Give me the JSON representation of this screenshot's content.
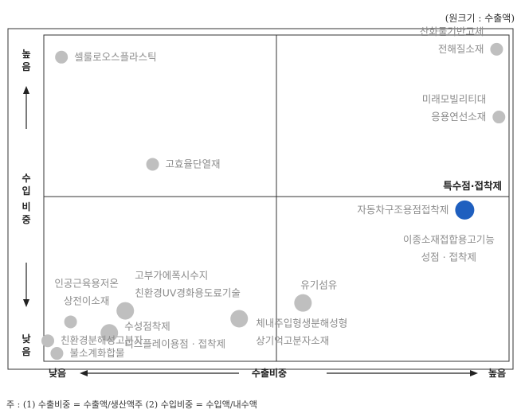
{
  "unit_note": "(원크기 : 수출액)",
  "footnote": "주 : (1) 수출비중 = 수출액/생산액주 (2) 수입비중 = 수입액/내수액",
  "chart_data": {
    "type": "scatter",
    "xlabel": "수출비중",
    "ylabel": [
      "수",
      "입",
      "비",
      "중"
    ],
    "x_low": "낮음",
    "x_high": "높음",
    "y_high": [
      "높",
      "음"
    ],
    "y_low": [
      "낮",
      "음"
    ],
    "points": [
      {
        "name": "셀룰로오스플라스틱",
        "label_lines": [
          "셀룰로오스플라스틱"
        ],
        "x": 0.03,
        "y": 0.95,
        "size": "small",
        "color": "#bfbfbf",
        "label_side": "right"
      },
      {
        "name": "산화물기반고체전해질소재",
        "label_lines": [
          "산화물기반고체",
          "전해질소재"
        ],
        "x": 0.985,
        "y": 0.975,
        "size": "small",
        "color": "#bfbfbf",
        "label_side": "left"
      },
      {
        "name": "미래모빌리티대응용연선소재",
        "label_lines": [
          "미래모빌리티대",
          "응용연선소재"
        ],
        "x": 0.99,
        "y": 0.76,
        "size": "small",
        "color": "#bfbfbf",
        "label_side": "left"
      },
      {
        "name": "고효율단열재",
        "label_lines": [
          "고효율단열재"
        ],
        "x": 0.23,
        "y": 0.61,
        "size": "small",
        "color": "#bfbfbf",
        "label_side": "right"
      },
      {
        "name": "자동차구조용점접착제",
        "label_lines": [
          "자동차구조용점접착제"
        ],
        "x": 0.915,
        "y": 0.465,
        "size": "large",
        "color": "#1f5fbf",
        "label_side": "left"
      },
      {
        "name": "이종소재접합용고기능성점·접착제",
        "label_lines": [
          "이종소재접합용고기능",
          "성점 · 접착제"
        ],
        "x": 0.88,
        "y": 0.36,
        "size": "none",
        "color": "#bfbfbf",
        "label_side": "center"
      },
      {
        "name": "유기섬유",
        "label_lines": [
          "유기섬유"
        ],
        "x": 0.56,
        "y": 0.17,
        "size": "medium",
        "color": "#bfbfbf",
        "label_side": "above"
      },
      {
        "name": "체내주입형생분해성형상기억고분자소재",
        "label_lines": [
          "체내주입형생분해성형",
          "상기억고분자소재"
        ],
        "x": 0.42,
        "y": 0.12,
        "size": "medium",
        "color": "#bfbfbf",
        "label_side": "right-below"
      },
      {
        "name": "고부가에폭시수지친환경UV경화용도료기술",
        "label_lines": [
          "고부가에폭시수지",
          "친환경UV경화용도료기술"
        ],
        "x": 0.17,
        "y": 0.145,
        "size": "medium",
        "color": "#bfbfbf",
        "label_side": "right-above"
      },
      {
        "name": "인공근육용저온상전이소재",
        "label_lines": [
          "인공근육용저온",
          "상전이소재"
        ],
        "x": 0.05,
        "y": 0.11,
        "size": "small",
        "color": "#bfbfbf",
        "label_side": "above"
      },
      {
        "name": "수성점착제디스플레이용점·접착제",
        "label_lines": [
          "수성점착제",
          "디스플레이용점 · 접착제"
        ],
        "x": 0.135,
        "y": 0.075,
        "size": "medium",
        "color": "#bfbfbf",
        "label_side": "right"
      },
      {
        "name": "친환경분해성고분자",
        "label_lines": [
          "친환경분해성고분자"
        ],
        "x": 0.0,
        "y": 0.05,
        "size": "small",
        "color": "#bfbfbf",
        "label_side": "right"
      },
      {
        "name": "불소계화합물",
        "label_lines": [
          "불소계화합물"
        ],
        "x": 0.02,
        "y": 0.01,
        "size": "small",
        "color": "#bfbfbf",
        "label_side": "right"
      }
    ],
    "quadrant_label": "특수점·접착제",
    "grid": false
  }
}
